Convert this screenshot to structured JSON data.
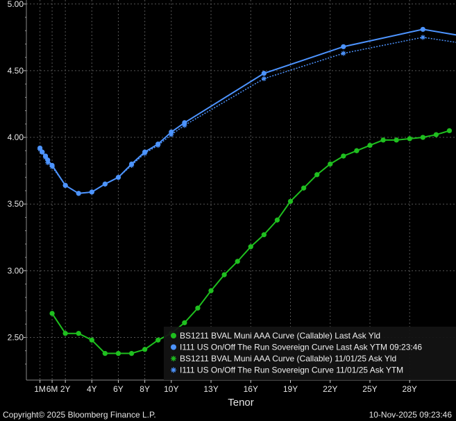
{
  "footer": {
    "copyright": "Copyright© 2025 Bloomberg Finance L.P.",
    "timestamp": "10-Nov-2025 09:23:46"
  },
  "chart_data": {
    "type": "line",
    "xlabel": "Tenor",
    "ylabel": "",
    "ylim": [
      2.18,
      5.03
    ],
    "xlim": [
      0,
      31.5
    ],
    "yticks": [
      2.5,
      3.0,
      3.5,
      4.0,
      4.5,
      5.0
    ],
    "ytick_labels": [
      "2.50",
      "3.00",
      "3.50",
      "4.00",
      "4.50",
      "5.00"
    ],
    "xticks": [
      0.083,
      1,
      2,
      4,
      6,
      8,
      10,
      13,
      16,
      19,
      22,
      25,
      28
    ],
    "xtick_labels": [
      "1M",
      "6M",
      "2Y",
      "4Y",
      "6Y",
      "8Y",
      "10Y",
      "13Y",
      "16Y",
      "19Y",
      "22Y",
      "25Y",
      "28Y"
    ],
    "grid": true,
    "legend_position": "bottom-right",
    "colors": {
      "green": "#1fbf1f",
      "blue": "#4d94ff",
      "background": "#000000",
      "grid": "#555555"
    },
    "series": [
      {
        "name": "BS1211 BVAL Muni AAA Curve (Callable) Last Ask Yld",
        "color": "#1fbf1f",
        "style": "solid",
        "marker": "dot",
        "points": [
          [
            1,
            2.68
          ],
          [
            2,
            2.53
          ],
          [
            3,
            2.53
          ],
          [
            4,
            2.48
          ],
          [
            5,
            2.38
          ],
          [
            6,
            2.38
          ],
          [
            7,
            2.38
          ],
          [
            8,
            2.41
          ],
          [
            9,
            2.48
          ],
          [
            10,
            2.53
          ],
          [
            11,
            2.61
          ],
          [
            12,
            2.72
          ],
          [
            13,
            2.85
          ],
          [
            14,
            2.97
          ],
          [
            15,
            3.07
          ],
          [
            16,
            3.18
          ],
          [
            17,
            3.27
          ],
          [
            18,
            3.38
          ],
          [
            19,
            3.52
          ],
          [
            20,
            3.62
          ],
          [
            21,
            3.72
          ],
          [
            22,
            3.8
          ],
          [
            23,
            3.86
          ],
          [
            24,
            3.9
          ],
          [
            25,
            3.94
          ],
          [
            26,
            3.98
          ],
          [
            27,
            3.98
          ],
          [
            28,
            3.99
          ],
          [
            29,
            4.0
          ],
          [
            30,
            4.02
          ],
          [
            31,
            4.05
          ]
        ]
      },
      {
        "name": "I111 US On/Off The Run Sovereign Curve Last Ask YTM 09:23:46",
        "color": "#4d94ff",
        "style": "solid",
        "marker": "dot",
        "points": [
          [
            0.083,
            3.92
          ],
          [
            0.25,
            3.89
          ],
          [
            0.5,
            3.86
          ],
          [
            0.67,
            3.83
          ],
          [
            1,
            3.79
          ],
          [
            2,
            3.64
          ],
          [
            3,
            3.58
          ],
          [
            4,
            3.59
          ],
          [
            5,
            3.65
          ],
          [
            6,
            3.7
          ],
          [
            7,
            3.8
          ],
          [
            8,
            3.89
          ],
          [
            9,
            3.95
          ],
          [
            10,
            4.04
          ],
          [
            11,
            4.11
          ],
          [
            17,
            4.48
          ],
          [
            23,
            4.68
          ],
          [
            29,
            4.81
          ],
          [
            35,
            4.71
          ]
        ]
      },
      {
        "name": "BS1211 BVAL Muni AAA Curve (Callable) 11/01/25 Ask Yld",
        "color": "#1fbf1f",
        "style": "dotted",
        "marker": "star",
        "points": [
          [
            1,
            2.68
          ],
          [
            2,
            2.53
          ],
          [
            3,
            2.53
          ],
          [
            4,
            2.48
          ],
          [
            5,
            2.38
          ],
          [
            6,
            2.38
          ],
          [
            7,
            2.38
          ],
          [
            8,
            2.41
          ],
          [
            9,
            2.48
          ],
          [
            10,
            2.53
          ],
          [
            11,
            2.61
          ],
          [
            12,
            2.72
          ],
          [
            13,
            2.85
          ],
          [
            14,
            2.97
          ],
          [
            15,
            3.07
          ],
          [
            16,
            3.18
          ],
          [
            17,
            3.27
          ],
          [
            18,
            3.38
          ],
          [
            19,
            3.52
          ],
          [
            20,
            3.62
          ],
          [
            21,
            3.72
          ],
          [
            22,
            3.8
          ],
          [
            23,
            3.86
          ],
          [
            24,
            3.9
          ],
          [
            25,
            3.94
          ],
          [
            26,
            3.98
          ],
          [
            27,
            3.98
          ],
          [
            28,
            3.99
          ],
          [
            29,
            4.0
          ],
          [
            30,
            4.02
          ],
          [
            31,
            4.05
          ]
        ]
      },
      {
        "name": "I111 US On/Off The Run Sovereign Curve 11/01/25 Ask YTM",
        "color": "#4d94ff",
        "style": "dotted",
        "marker": "star",
        "points": [
          [
            0.083,
            3.91
          ],
          [
            0.25,
            3.89
          ],
          [
            0.5,
            3.85
          ],
          [
            0.67,
            3.81
          ],
          [
            1,
            3.78
          ],
          [
            2,
            3.64
          ],
          [
            3,
            3.58
          ],
          [
            4,
            3.59
          ],
          [
            5,
            3.65
          ],
          [
            6,
            3.7
          ],
          [
            7,
            3.79
          ],
          [
            8,
            3.88
          ],
          [
            9,
            3.94
          ],
          [
            10,
            4.02
          ],
          [
            11,
            4.09
          ],
          [
            17,
            4.44
          ],
          [
            23,
            4.63
          ],
          [
            29,
            4.75
          ],
          [
            35,
            4.66
          ]
        ]
      }
    ]
  }
}
